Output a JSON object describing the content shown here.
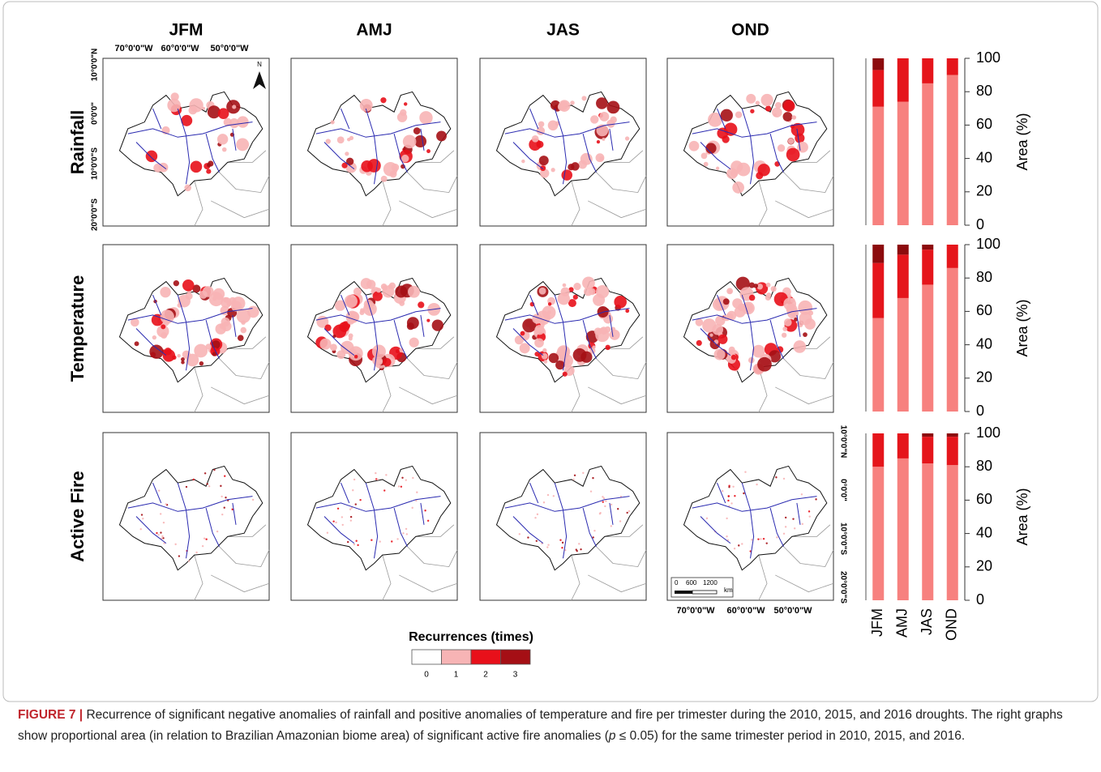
{
  "columns": [
    "JFM",
    "AMJ",
    "JAS",
    "OND"
  ],
  "rows": [
    "Rainfall",
    "Temperature",
    "Active Fire"
  ],
  "map_axes": {
    "x_labels": [
      "70°0'0\"W",
      "60°0'0\"W",
      "50°0'0\"W"
    ],
    "y_labels": [
      "10°0'0\"N",
      "0°0'0\"",
      "10°0'0\"S",
      "20°0'0\"S"
    ],
    "north": "N",
    "scale_labels": [
      "0",
      "600",
      "1200",
      "km"
    ]
  },
  "legend": {
    "title": "Recurrences (times)",
    "items": [
      {
        "label": "0",
        "color": "#ffffff"
      },
      {
        "label": "1",
        "color": "#f7b4b5"
      },
      {
        "label": "2",
        "color": "#e8101a"
      },
      {
        "label": "3",
        "color": "#a50f15"
      }
    ]
  },
  "chart_data": [
    {
      "type": "bar",
      "stacked": true,
      "ylabel": "Area (%)",
      "categories": [
        "JFM",
        "AMJ",
        "JAS",
        "OND"
      ],
      "ylim": [
        0,
        100
      ],
      "yticks": [
        0,
        20,
        40,
        60,
        80,
        100
      ],
      "series": [
        {
          "color": "#f7817f",
          "values": [
            71,
            74,
            85,
            90
          ]
        },
        {
          "color": "#e5151b",
          "values": [
            22,
            26,
            15,
            10
          ]
        },
        {
          "color": "#8c0b0d",
          "values": [
            7,
            0,
            0,
            0
          ]
        }
      ]
    },
    {
      "type": "bar",
      "stacked": true,
      "ylabel": "Area (%)",
      "categories": [
        "JFM",
        "AMJ",
        "JAS",
        "OND"
      ],
      "ylim": [
        0,
        100
      ],
      "yticks": [
        0,
        20,
        40,
        60,
        80,
        100
      ],
      "series": [
        {
          "color": "#f7817f",
          "values": [
            56,
            68,
            76,
            86
          ]
        },
        {
          "color": "#e5151b",
          "values": [
            33,
            26,
            21,
            14
          ]
        },
        {
          "color": "#8c0b0d",
          "values": [
            11,
            6,
            3,
            0
          ]
        }
      ]
    },
    {
      "type": "bar",
      "stacked": true,
      "ylabel": "Area (%)",
      "categories": [
        "JFM",
        "AMJ",
        "JAS",
        "OND"
      ],
      "ylim": [
        0,
        100
      ],
      "yticks": [
        0,
        20,
        40,
        60,
        80,
        100
      ],
      "series": [
        {
          "color": "#f7817f",
          "values": [
            80,
            85,
            82,
            81
          ]
        },
        {
          "color": "#e5151b",
          "values": [
            20,
            15,
            16,
            17
          ]
        },
        {
          "color": "#8c0b0d",
          "values": [
            0,
            0,
            2,
            2
          ]
        }
      ]
    }
  ],
  "caption": {
    "label": "FIGURE 7 |",
    "text_before": " Recurrence of significant negative anomalies of rainfall and positive anomalies of temperature and fire per trimester during the 2010, 2015, and 2016 droughts. The right graphs show proportional area (in relation to Brazilian Amazonian biome area) of significant active fire anomalies (",
    "italic": "p",
    "text_after": " ≤ 0.05) for the same trimester period in 2010, 2015, and 2016."
  }
}
